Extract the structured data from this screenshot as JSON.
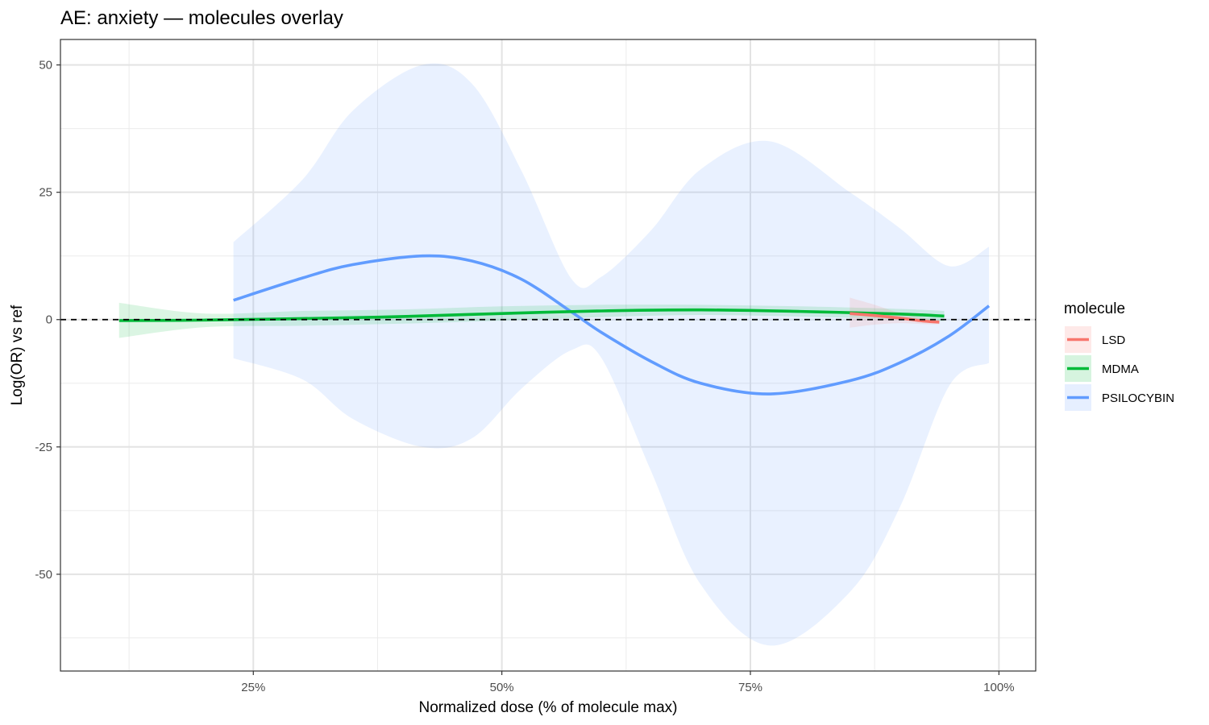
{
  "chart_data": {
    "type": "line",
    "title": "AE: anxiety — molecules overlay",
    "xlabel": "Normalized dose (% of molecule max)",
    "ylabel": "Log(OR) vs ref",
    "xlim": [
      0.056,
      1.037
    ],
    "ylim": [
      -69,
      55
    ],
    "x_ticks": [
      {
        "value": 0.25,
        "label": "25%"
      },
      {
        "value": 0.5,
        "label": "50%"
      },
      {
        "value": 0.75,
        "label": "75%"
      },
      {
        "value": 1.0,
        "label": "100%"
      }
    ],
    "y_ticks": [
      {
        "value": 50,
        "label": "50"
      },
      {
        "value": 25,
        "label": "25"
      },
      {
        "value": 0,
        "label": "0"
      },
      {
        "value": -25,
        "label": "-25"
      },
      {
        "value": -50,
        "label": "-50"
      }
    ],
    "grid": true,
    "reference_line": {
      "y": 0,
      "style": "dashed"
    },
    "legend": {
      "title": "molecule",
      "position": "right"
    },
    "series": [
      {
        "name": "LSD",
        "color": "#F8766D",
        "x": [
          0.85,
          0.875,
          0.9,
          0.925,
          0.94
        ],
        "y": [
          1.2,
          0.8,
          0.3,
          -0.3,
          -0.5
        ],
        "lower": [
          -1.6,
          -1.0,
          -0.7,
          -0.9,
          -0.9
        ],
        "upper": [
          4.3,
          2.9,
          1.3,
          0.3,
          -0.1
        ]
      },
      {
        "name": "MDMA",
        "color": "#00BA38",
        "x": [
          0.115,
          0.2,
          0.3,
          0.4,
          0.5,
          0.6,
          0.7,
          0.8,
          0.9,
          0.945
        ],
        "y": [
          -0.2,
          -0.1,
          0.2,
          0.6,
          1.2,
          1.7,
          1.9,
          1.6,
          1.1,
          0.7
        ],
        "lower": [
          -3.6,
          -1.5,
          -1.2,
          -0.8,
          -0.2,
          0.5,
          0.9,
          0.6,
          0.1,
          -0.3
        ],
        "upper": [
          3.3,
          1.2,
          1.7,
          2.0,
          2.6,
          2.9,
          2.9,
          2.6,
          2.1,
          1.7
        ]
      },
      {
        "name": "PSILOCYBIN",
        "color": "#619CFF",
        "x": [
          0.23,
          0.3,
          0.35,
          0.42,
          0.47,
          0.52,
          0.57,
          0.6,
          0.65,
          0.7,
          0.77,
          0.85,
          0.9,
          0.95,
          0.99
        ],
        "y": [
          3.8,
          8.2,
          10.8,
          12.5,
          11.5,
          7.9,
          1.5,
          -2.5,
          -8.2,
          -12.5,
          -14.6,
          -12.0,
          -8.5,
          -3.2,
          2.7
        ],
        "lower": [
          -7.6,
          -11.8,
          -19.5,
          -25.0,
          -23.3,
          -13.5,
          -6.0,
          -7.5,
          -29.7,
          -52.0,
          -64.0,
          -53.5,
          -37.0,
          -13.0,
          -8.5
        ],
        "upper": [
          15.2,
          27.6,
          41.0,
          50.0,
          46.3,
          29.1,
          8.0,
          8.4,
          17.5,
          29.5,
          35.0,
          25.0,
          18.0,
          10.5,
          14.3
        ]
      }
    ]
  }
}
